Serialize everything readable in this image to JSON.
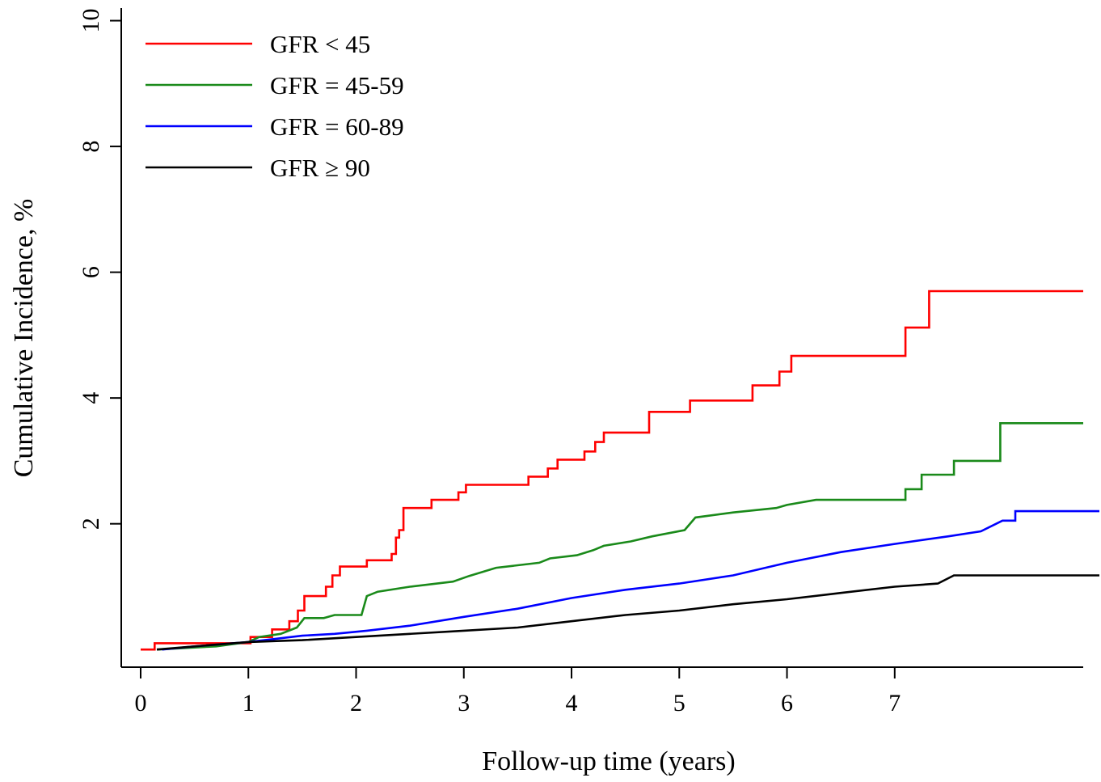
{
  "chart_data": {
    "type": "line",
    "step": true,
    "title": "",
    "xlabel": "Follow-up time (years)",
    "ylabel": "Cumulative Incidence, %",
    "xlim": [
      -0.18,
      8.75
    ],
    "ylim": [
      -0.28,
      10.2
    ],
    "x_ticks": [
      0,
      1,
      2,
      3,
      4,
      5,
      6,
      7
    ],
    "x_tick_labels": [
      "0",
      "1",
      "2",
      "3",
      "4",
      "5",
      "6",
      "7"
    ],
    "y_ticks": [
      2,
      4,
      6,
      8,
      10
    ],
    "y_tick_labels": [
      "2",
      "4",
      "6",
      "8",
      "10"
    ],
    "grid": false,
    "legend_position": "top-left",
    "series": [
      {
        "name": "GFR < 45",
        "color": "#ff0000",
        "points": [
          [
            0,
            0
          ],
          [
            0.13,
            0
          ],
          [
            0.13,
            0.1
          ],
          [
            1.02,
            0.1
          ],
          [
            1.02,
            0.2
          ],
          [
            1.22,
            0.2
          ],
          [
            1.22,
            0.32
          ],
          [
            1.38,
            0.32
          ],
          [
            1.38,
            0.45
          ],
          [
            1.46,
            0.45
          ],
          [
            1.46,
            0.62
          ],
          [
            1.52,
            0.62
          ],
          [
            1.52,
            0.85
          ],
          [
            1.72,
            0.85
          ],
          [
            1.72,
            1.0
          ],
          [
            1.78,
            1.0
          ],
          [
            1.78,
            1.18
          ],
          [
            1.85,
            1.18
          ],
          [
            1.85,
            1.32
          ],
          [
            2.1,
            1.32
          ],
          [
            2.1,
            1.42
          ],
          [
            2.33,
            1.42
          ],
          [
            2.33,
            1.52
          ],
          [
            2.37,
            1.52
          ],
          [
            2.37,
            1.78
          ],
          [
            2.4,
            1.78
          ],
          [
            2.4,
            1.9
          ],
          [
            2.44,
            1.9
          ],
          [
            2.44,
            2.25
          ],
          [
            2.7,
            2.25
          ],
          [
            2.7,
            2.38
          ],
          [
            2.95,
            2.38
          ],
          [
            2.95,
            2.5
          ],
          [
            3.02,
            2.5
          ],
          [
            3.02,
            2.62
          ],
          [
            3.6,
            2.62
          ],
          [
            3.6,
            2.75
          ],
          [
            3.78,
            2.75
          ],
          [
            3.78,
            2.88
          ],
          [
            3.87,
            2.88
          ],
          [
            3.87,
            3.02
          ],
          [
            4.12,
            3.02
          ],
          [
            4.12,
            3.15
          ],
          [
            4.22,
            3.15
          ],
          [
            4.22,
            3.3
          ],
          [
            4.3,
            3.3
          ],
          [
            4.3,
            3.45
          ],
          [
            4.72,
            3.45
          ],
          [
            4.72,
            3.78
          ],
          [
            5.1,
            3.78
          ],
          [
            5.1,
            3.96
          ],
          [
            5.68,
            3.96
          ],
          [
            5.68,
            4.2
          ],
          [
            5.93,
            4.2
          ],
          [
            5.93,
            4.42
          ],
          [
            6.04,
            4.42
          ],
          [
            6.04,
            4.67
          ],
          [
            7.1,
            4.67
          ],
          [
            7.1,
            5.12
          ],
          [
            7.32,
            5.12
          ],
          [
            7.32,
            5.7
          ],
          [
            8.75,
            5.7
          ]
        ]
      },
      {
        "name": "GFR = 45-59",
        "color": "#1a8a1a",
        "points": [
          [
            0.15,
            0
          ],
          [
            0.7,
            0.05
          ],
          [
            1.0,
            0.12
          ],
          [
            1.1,
            0.2
          ],
          [
            1.3,
            0.25
          ],
          [
            1.45,
            0.35
          ],
          [
            1.52,
            0.5
          ],
          [
            1.7,
            0.5
          ],
          [
            1.8,
            0.55
          ],
          [
            2.05,
            0.55
          ],
          [
            2.1,
            0.85
          ],
          [
            2.2,
            0.92
          ],
          [
            2.5,
            1.0
          ],
          [
            2.9,
            1.08
          ],
          [
            3.05,
            1.17
          ],
          [
            3.3,
            1.3
          ],
          [
            3.7,
            1.38
          ],
          [
            3.8,
            1.45
          ],
          [
            4.05,
            1.5
          ],
          [
            4.2,
            1.58
          ],
          [
            4.3,
            1.65
          ],
          [
            4.55,
            1.72
          ],
          [
            4.75,
            1.8
          ],
          [
            5.05,
            1.9
          ],
          [
            5.15,
            2.1
          ],
          [
            5.5,
            2.18
          ],
          [
            5.9,
            2.25
          ],
          [
            6.0,
            2.3
          ],
          [
            6.27,
            2.38
          ],
          [
            7.1,
            2.38
          ],
          [
            7.1,
            2.55
          ],
          [
            7.25,
            2.55
          ],
          [
            7.25,
            2.78
          ],
          [
            7.55,
            2.78
          ],
          [
            7.55,
            3.0
          ],
          [
            7.98,
            3.0
          ],
          [
            7.98,
            3.6
          ],
          [
            8.75,
            3.6
          ]
        ]
      },
      {
        "name": "GFR = 60-89",
        "color": "#0000ff",
        "points": [
          [
            0.2,
            0
          ],
          [
            0.5,
            0.05
          ],
          [
            1.0,
            0.12
          ],
          [
            1.5,
            0.22
          ],
          [
            1.8,
            0.25
          ],
          [
            2.1,
            0.3
          ],
          [
            2.5,
            0.38
          ],
          [
            3.0,
            0.52
          ],
          [
            3.5,
            0.65
          ],
          [
            4.0,
            0.82
          ],
          [
            4.5,
            0.95
          ],
          [
            5.0,
            1.05
          ],
          [
            5.5,
            1.18
          ],
          [
            6.0,
            1.38
          ],
          [
            6.5,
            1.55
          ],
          [
            7.0,
            1.68
          ],
          [
            7.5,
            1.8
          ],
          [
            7.8,
            1.88
          ],
          [
            8.0,
            2.05
          ],
          [
            8.12,
            2.05
          ],
          [
            8.12,
            2.2
          ],
          [
            8.9,
            2.2
          ]
        ]
      },
      {
        "name": "GFR ≥ 90",
        "color": "#000000",
        "points": [
          [
            0.15,
            0
          ],
          [
            0.5,
            0.05
          ],
          [
            1.0,
            0.12
          ],
          [
            1.5,
            0.15
          ],
          [
            2.0,
            0.2
          ],
          [
            2.5,
            0.25
          ],
          [
            3.0,
            0.3
          ],
          [
            3.5,
            0.35
          ],
          [
            4.0,
            0.45
          ],
          [
            4.5,
            0.55
          ],
          [
            5.0,
            0.62
          ],
          [
            5.5,
            0.72
          ],
          [
            6.0,
            0.8
          ],
          [
            6.5,
            0.9
          ],
          [
            7.0,
            1.0
          ],
          [
            7.4,
            1.05
          ],
          [
            7.55,
            1.18
          ],
          [
            8.9,
            1.18
          ]
        ]
      }
    ]
  }
}
